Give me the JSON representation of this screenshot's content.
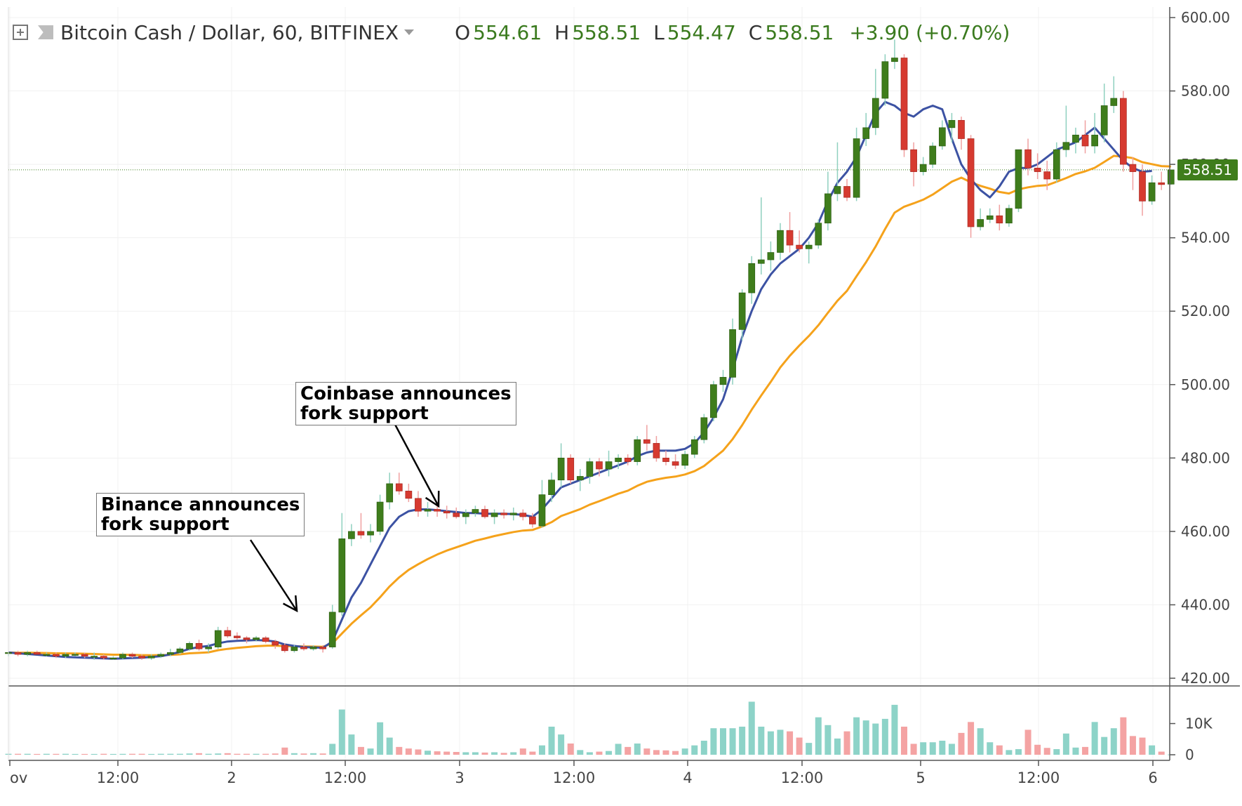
{
  "header": {
    "symbol": "Bitcoin Cash / Dollar, 60, BITFINEX",
    "open_label": "O",
    "open": "554.61",
    "high_label": "H",
    "high": "558.51",
    "low_label": "L",
    "low": "554.47",
    "close_label": "C",
    "close": "558.51",
    "change": "+3.90 (+0.70%)"
  },
  "annotations": [
    {
      "lines": [
        "Binance announces",
        "fork support"
      ]
    },
    {
      "lines": [
        "Coinbase announces",
        "fork support"
      ]
    }
  ],
  "last_price_label": "558.51",
  "chart_data": {
    "type": "candlestick",
    "title": "Bitcoin Cash / Dollar, 60, BITFINEX",
    "ylim": [
      420,
      600
    ],
    "y_ticks": [
      "600.00",
      "580.00",
      "560.00",
      "540.00",
      "520.00",
      "500.00",
      "480.00",
      "460.00",
      "440.00",
      "420.00"
    ],
    "x_ticks": [
      "ov",
      "12:00",
      "2",
      "12:00",
      "3",
      "12:00",
      "4",
      "12:00",
      "5",
      "12:00",
      "6"
    ],
    "volume_ticks": [
      "10K",
      "0"
    ],
    "colors": {
      "up": "#3f7d1c",
      "down": "#d63a30",
      "ma_fast": "#3c52a3",
      "ma_slow": "#f5a21b",
      "vol_up": "#8dd3c8",
      "vol_down": "#f4a3a3"
    },
    "candles": [
      [
        427.0,
        427.0,
        426.0,
        427.0
      ],
      [
        427.0,
        427.5,
        426.0,
        426.5
      ],
      [
        426.5,
        427.5,
        426.0,
        427.0
      ],
      [
        427.0,
        427.5,
        426.5,
        426.5
      ],
      [
        426.5,
        427.0,
        426.0,
        426.5
      ],
      [
        426.5,
        427.0,
        425.5,
        426.0
      ],
      [
        426.0,
        427.0,
        425.5,
        426.5
      ],
      [
        426.5,
        427.0,
        426.0,
        426.5
      ],
      [
        426.5,
        427.0,
        425.5,
        426.0
      ],
      [
        426.0,
        427.0,
        425.0,
        426.0
      ],
      [
        426.0,
        426.5,
        425.0,
        425.5
      ],
      [
        425.5,
        426.0,
        425.0,
        425.5
      ],
      [
        425.5,
        427.0,
        425.0,
        426.5
      ],
      [
        426.5,
        427.0,
        425.5,
        426.0
      ],
      [
        426.0,
        426.5,
        425.0,
        425.5
      ],
      [
        425.5,
        426.5,
        425.0,
        426.0
      ],
      [
        426.0,
        427.0,
        425.5,
        426.5
      ],
      [
        426.5,
        428.0,
        426.0,
        427.0
      ],
      [
        427.0,
        428.5,
        426.5,
        428.0
      ],
      [
        428.0,
        430.0,
        427.5,
        429.5
      ],
      [
        429.5,
        430.5,
        427.5,
        428.0
      ],
      [
        428.0,
        429.5,
        427.0,
        428.5
      ],
      [
        428.5,
        434.0,
        428.0,
        433.0
      ],
      [
        433.0,
        434.0,
        431.0,
        431.5
      ],
      [
        431.5,
        432.5,
        430.5,
        431.0
      ],
      [
        431.0,
        431.5,
        429.5,
        430.5
      ],
      [
        430.5,
        431.5,
        430.0,
        431.0
      ],
      [
        431.0,
        431.5,
        429.5,
        430.0
      ],
      [
        430.0,
        430.5,
        428.0,
        429.0
      ],
      [
        429.0,
        429.5,
        427.0,
        427.5
      ],
      [
        427.5,
        429.0,
        427.0,
        428.5
      ],
      [
        428.5,
        429.5,
        427.5,
        428.0
      ],
      [
        428.0,
        429.0,
        427.5,
        428.5
      ],
      [
        428.5,
        429.0,
        427.0,
        428.0
      ],
      [
        428.5,
        440.0,
        428.0,
        438.0
      ],
      [
        438.0,
        465.0,
        437.0,
        458.0
      ],
      [
        458.0,
        462.0,
        456.0,
        460.0
      ],
      [
        460.0,
        465.0,
        458.0,
        459.0
      ],
      [
        459.0,
        462.0,
        457.0,
        460.0
      ],
      [
        460.0,
        470.0,
        459.0,
        468.0
      ],
      [
        468.0,
        476.0,
        466.0,
        473.0
      ],
      [
        473.0,
        476.0,
        470.0,
        471.0
      ],
      [
        471.0,
        473.0,
        468.0,
        469.0
      ],
      [
        469.0,
        471.0,
        464.0,
        465.5
      ],
      [
        465.5,
        468.0,
        464.0,
        466.0
      ],
      [
        466.0,
        468.0,
        464.0,
        465.5
      ],
      [
        465.5,
        467.0,
        463.5,
        465.0
      ],
      [
        465.0,
        466.5,
        463.5,
        464.0
      ],
      [
        464.0,
        466.0,
        462.0,
        465.0
      ],
      [
        465.0,
        467.0,
        464.0,
        466.0
      ],
      [
        466.0,
        467.0,
        463.5,
        464.0
      ],
      [
        464.0,
        466.0,
        462.0,
        465.0
      ],
      [
        465.0,
        466.0,
        463.5,
        464.5
      ],
      [
        464.5,
        466.5,
        463.0,
        465.0
      ],
      [
        465.0,
        466.0,
        463.0,
        464.0
      ],
      [
        464.0,
        465.0,
        461.0,
        462.0
      ],
      [
        461.5,
        474.0,
        461.0,
        470.0
      ],
      [
        470.0,
        476.0,
        468.0,
        474.0
      ],
      [
        474.0,
        484.0,
        472.0,
        480.0
      ],
      [
        480.0,
        481.0,
        473.0,
        474.0
      ],
      [
        474.0,
        477.0,
        471.0,
        475.0
      ],
      [
        475.0,
        480.0,
        473.0,
        479.0
      ],
      [
        479.0,
        480.0,
        475.0,
        477.0
      ],
      [
        477.0,
        482.0,
        475.0,
        479.0
      ],
      [
        479.0,
        481.0,
        477.0,
        480.0
      ],
      [
        480.0,
        481.0,
        478.0,
        479.0
      ],
      [
        479.0,
        486.0,
        478.0,
        485.0
      ],
      [
        485.0,
        489.0,
        482.0,
        484.0
      ],
      [
        484.0,
        486.0,
        479.0,
        480.0
      ],
      [
        480.0,
        482.0,
        478.0,
        479.0
      ],
      [
        479.0,
        481.0,
        477.0,
        478.0
      ],
      [
        478.0,
        482.0,
        477.0,
        481.0
      ],
      [
        481.0,
        486.0,
        480.0,
        485.0
      ],
      [
        485.0,
        492.0,
        484.0,
        491.0
      ],
      [
        491.0,
        501.0,
        490.0,
        500.0
      ],
      [
        500.0,
        504.0,
        498.0,
        502.0
      ],
      [
        502.0,
        518.0,
        500.0,
        515.0
      ],
      [
        515.0,
        526.0,
        512.0,
        525.0
      ],
      [
        525.0,
        535.0,
        522.0,
        533.0
      ],
      [
        533.0,
        551.0,
        530.0,
        534.0
      ],
      [
        534.0,
        539.0,
        531.0,
        536.0
      ],
      [
        536.0,
        544.0,
        534.0,
        542.0
      ],
      [
        542.0,
        547.0,
        536.0,
        538.0
      ],
      [
        538.0,
        542.0,
        536.0,
        537.0
      ],
      [
        537.0,
        539.0,
        533.0,
        538.0
      ],
      [
        538.0,
        545.0,
        537.0,
        544.0
      ],
      [
        544.0,
        558.0,
        542.0,
        552.0
      ],
      [
        552.0,
        566.0,
        550.0,
        554.0
      ],
      [
        554.0,
        556.0,
        550.0,
        551.0
      ],
      [
        551.0,
        570.0,
        550.0,
        567.0
      ],
      [
        567.0,
        574.0,
        565.0,
        570.0
      ],
      [
        570.0,
        586.0,
        568.0,
        578.0
      ],
      [
        578.0,
        590.0,
        576.0,
        588.0
      ],
      [
        588.0,
        594.0,
        586.0,
        589.0
      ],
      [
        589.0,
        590.0,
        562.0,
        564.0
      ],
      [
        564.0,
        566.0,
        554.0,
        558.0
      ],
      [
        558.0,
        562.0,
        557.0,
        560.0
      ],
      [
        560.0,
        566.0,
        559.0,
        565.0
      ],
      [
        565.0,
        572.0,
        564.0,
        570.0
      ],
      [
        570.0,
        574.0,
        566.0,
        572.0
      ],
      [
        572.0,
        573.0,
        564.0,
        567.0
      ],
      [
        567.0,
        568.0,
        540.0,
        543.0
      ],
      [
        543.0,
        548.0,
        542.0,
        545.0
      ],
      [
        545.0,
        548.0,
        544.0,
        546.0
      ],
      [
        546.0,
        549.0,
        542.0,
        544.0
      ],
      [
        544.0,
        549.0,
        543.0,
        548.0
      ],
      [
        548.0,
        564.0,
        547.0,
        564.0
      ],
      [
        564.0,
        567.0,
        557.0,
        559.0
      ],
      [
        559.0,
        563.0,
        556.0,
        558.0
      ],
      [
        558.0,
        561.0,
        553.0,
        556.0
      ],
      [
        556.0,
        566.0,
        555.0,
        564.0
      ],
      [
        564.0,
        576.0,
        562.0,
        566.0
      ],
      [
        566.0,
        570.0,
        563.0,
        568.0
      ],
      [
        568.0,
        572.0,
        563.0,
        565.0
      ],
      [
        565.0,
        574.0,
        563.0,
        568.0
      ],
      [
        568.0,
        582.0,
        566.0,
        576.0
      ],
      [
        576.0,
        584.0,
        574.0,
        578.0
      ],
      [
        578.0,
        580.0,
        558.0,
        560.0
      ],
      [
        560.0,
        562.0,
        553.0,
        558.0
      ],
      [
        558.0,
        560.0,
        546.0,
        550.0
      ],
      [
        550.0,
        557.0,
        549.0,
        555.0
      ],
      [
        555.0,
        558.0,
        553.0,
        554.5
      ],
      [
        554.61,
        558.51,
        554.47,
        558.51
      ]
    ],
    "volume": [
      300,
      300,
      300,
      250,
      300,
      280,
      300,
      250,
      250,
      250,
      300,
      250,
      280,
      300,
      300,
      250,
      300,
      300,
      300,
      400,
      500,
      300,
      400,
      500,
      300,
      300,
      300,
      300,
      400,
      2300,
      500,
      400,
      500,
      400,
      3500,
      14500,
      6500,
      2500,
      2000,
      10400,
      5500,
      2500,
      2000,
      1700,
      1300,
      1100,
      1000,
      900,
      800,
      800,
      700,
      800,
      600,
      800,
      2000,
      1000,
      3000,
      9000,
      6500,
      3600,
      1500,
      800,
      1000,
      1200,
      3500,
      2500,
      3600,
      2000,
      1500,
      1400,
      1200,
      2000,
      3000,
      4500,
      8500,
      8500,
      8500,
      9000,
      17000,
      9000,
      7500,
      8000,
      7500,
      5500,
      3800,
      12000,
      9500,
      5200,
      7500,
      12000,
      11000,
      10000,
      11500,
      16000,
      9000,
      3500,
      4000,
      4000,
      4500,
      3500,
      7000,
      10500,
      8500,
      4000,
      3000,
      1500,
      1800,
      8000,
      3200,
      2200,
      1800,
      6800,
      2300,
      2500,
      10500,
      5700,
      8500,
      12000,
      6000,
      5500,
      3000,
      1000,
      100
    ],
    "ma_fast": [
      427,
      426.8,
      426.6,
      426.4,
      426.2,
      426,
      425.8,
      425.7,
      425.6,
      425.5,
      425.4,
      425.3,
      425.4,
      425.5,
      425.6,
      425.8,
      426,
      426.5,
      427.2,
      428,
      428.5,
      428.8,
      429.5,
      430,
      430.2,
      430.3,
      430.4,
      430.3,
      430,
      429.2,
      428.8,
      428.5,
      428.4,
      428.3,
      430,
      436,
      442,
      446,
      451,
      456,
      461,
      464,
      465.5,
      466,
      466,
      465.8,
      465.5,
      465.3,
      465,
      465,
      464.8,
      464.8,
      464.8,
      464.7,
      464.5,
      464,
      466,
      469,
      472,
      473,
      474,
      475,
      476,
      477,
      478,
      479,
      480.5,
      481.5,
      482,
      482,
      482,
      482.5,
      484,
      487,
      491,
      496,
      504,
      513,
      520,
      526,
      530,
      533,
      535,
      537,
      540,
      544,
      550,
      555,
      558,
      562,
      568,
      574,
      577,
      576,
      574,
      573,
      575,
      576,
      575,
      567,
      560,
      556,
      553,
      551,
      554,
      558,
      559,
      559,
      560,
      562,
      564,
      565,
      566,
      568,
      570,
      567,
      564,
      561,
      559,
      558,
      558.2
    ]
  }
}
